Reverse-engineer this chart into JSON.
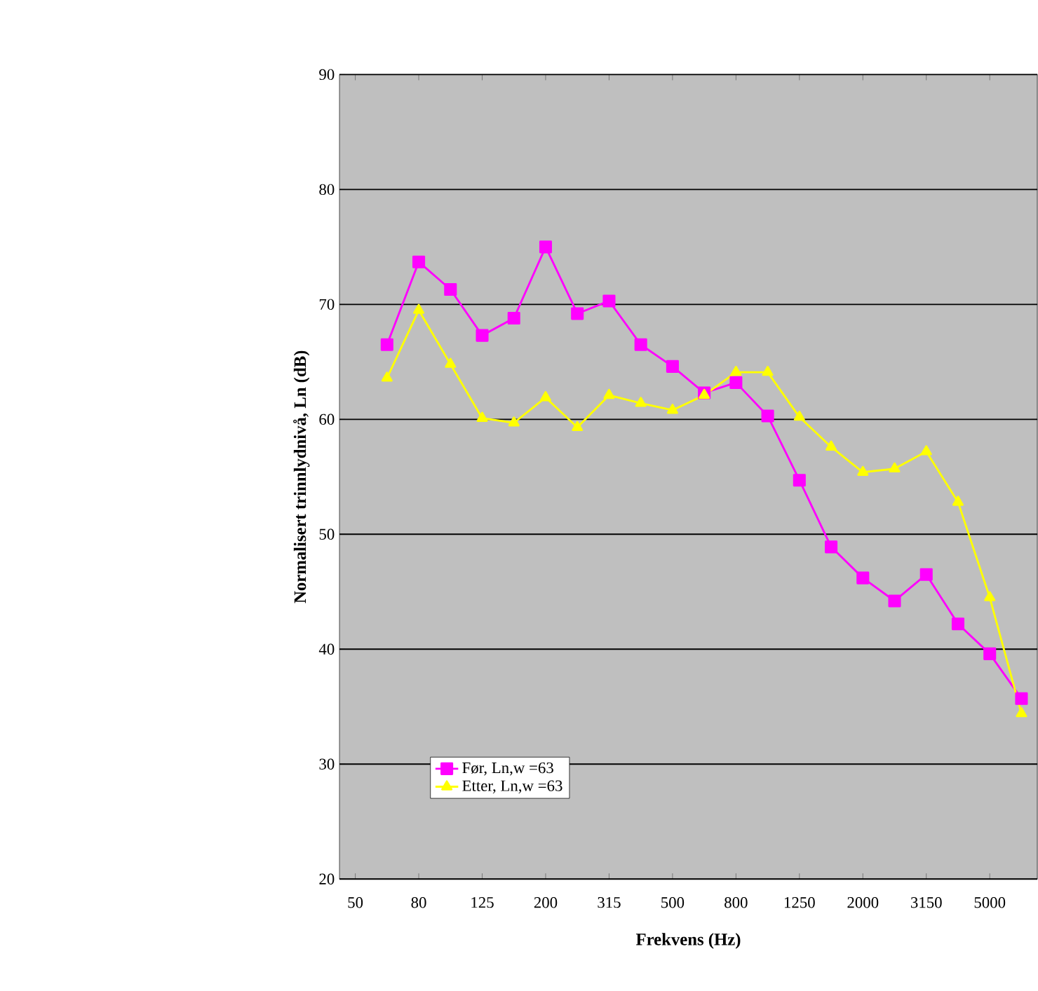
{
  "chart_data": {
    "type": "line",
    "xlabel": "Frekvens (Hz)",
    "ylabel": "Normalisert trinnlydnivå, Ln (dB)",
    "categories": [
      "50",
      null,
      "80",
      null,
      "125",
      null,
      "200",
      null,
      "315",
      null,
      "500",
      null,
      "800",
      null,
      "1250",
      null,
      "2000",
      null,
      "3150",
      null,
      "5000",
      null
    ],
    "series": [
      {
        "name": "Før, Ln,w  =63",
        "color": "#ff00ff",
        "marker": "square",
        "values": [
          null,
          66.5,
          73.7,
          71.3,
          67.3,
          68.8,
          75.0,
          69.2,
          70.3,
          66.5,
          64.6,
          62.3,
          63.2,
          60.3,
          54.7,
          48.9,
          46.2,
          44.2,
          46.5,
          42.2,
          39.6,
          35.7
        ]
      },
      {
        "name": "Etter,  Ln,w  =63",
        "color": "#ffff00",
        "marker": "triangle",
        "values": [
          null,
          63.6,
          69.5,
          64.8,
          60.1,
          59.7,
          61.9,
          59.3,
          62.1,
          61.4,
          60.8,
          62.1,
          64.1,
          64.1,
          60.2,
          57.6,
          55.4,
          55.7,
          57.2,
          52.8,
          44.5,
          34.4
        ]
      }
    ],
    "ylim": [
      20,
      90
    ],
    "yticks": [
      20,
      30,
      40,
      50,
      60,
      70,
      80,
      90
    ],
    "grid": "y",
    "legend": "bottom left"
  }
}
